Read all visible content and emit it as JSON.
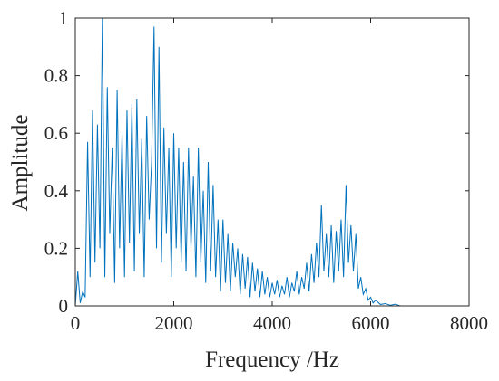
{
  "chart_data": {
    "type": "line",
    "x_label": "Frequency /Hz",
    "y_label": "Amplitude",
    "color": "#0072bd",
    "xlim": [
      0,
      8000
    ],
    "xticks": [
      0,
      2000,
      4000,
      6000,
      8000
    ],
    "ylim": [
      0,
      1
    ],
    "yticks": [
      0,
      0.2,
      0.4,
      0.6,
      0.8,
      1
    ],
    "x": [
      0,
      50,
      100,
      150,
      200,
      250,
      300,
      350,
      400,
      450,
      500,
      550,
      600,
      650,
      700,
      750,
      800,
      850,
      900,
      950,
      1000,
      1050,
      1100,
      1150,
      1200,
      1250,
      1300,
      1350,
      1400,
      1450,
      1500,
      1550,
      1600,
      1650,
      1700,
      1750,
      1800,
      1850,
      1900,
      1950,
      2000,
      2050,
      2100,
      2150,
      2200,
      2250,
      2300,
      2350,
      2400,
      2450,
      2500,
      2550,
      2600,
      2650,
      2700,
      2750,
      2800,
      2850,
      2900,
      2950,
      3000,
      3050,
      3100,
      3150,
      3200,
      3250,
      3300,
      3350,
      3400,
      3450,
      3500,
      3550,
      3600,
      3650,
      3700,
      3750,
      3800,
      3850,
      3900,
      3950,
      4000,
      4050,
      4100,
      4150,
      4200,
      4250,
      4300,
      4350,
      4400,
      4450,
      4500,
      4550,
      4600,
      4650,
      4700,
      4750,
      4800,
      4850,
      4900,
      4950,
      5000,
      5050,
      5100,
      5150,
      5200,
      5250,
      5300,
      5350,
      5400,
      5450,
      5500,
      5550,
      5600,
      5650,
      5700,
      5750,
      5800,
      5850,
      5900,
      5950,
      6000,
      6050,
      6100,
      6200,
      6300,
      6400,
      6500,
      6600,
      8000
    ],
    "values": [
      0,
      0.12,
      0.01,
      0.05,
      0.03,
      0.57,
      0.1,
      0.68,
      0.15,
      0.63,
      0.2,
      1.0,
      0.1,
      0.76,
      0.25,
      0.55,
      0.08,
      0.75,
      0.2,
      0.6,
      0.1,
      0.68,
      0.22,
      0.7,
      0.12,
      0.72,
      0.25,
      0.58,
      0.1,
      0.66,
      0.3,
      0.5,
      0.97,
      0.2,
      0.9,
      0.15,
      0.62,
      0.25,
      0.55,
      0.1,
      0.6,
      0.2,
      0.55,
      0.15,
      0.5,
      0.12,
      0.55,
      0.2,
      0.45,
      0.1,
      0.55,
      0.15,
      0.4,
      0.08,
      0.5,
      0.12,
      0.42,
      0.1,
      0.3,
      0.05,
      0.3,
      0.08,
      0.25,
      0.05,
      0.22,
      0.1,
      0.2,
      0.04,
      0.18,
      0.06,
      0.17,
      0.03,
      0.15,
      0.05,
      0.13,
      0.03,
      0.12,
      0.04,
      0.1,
      0.03,
      0.08,
      0.04,
      0.09,
      0.03,
      0.07,
      0.04,
      0.1,
      0.03,
      0.08,
      0.05,
      0.12,
      0.04,
      0.1,
      0.06,
      0.15,
      0.05,
      0.18,
      0.08,
      0.22,
      0.1,
      0.35,
      0.12,
      0.25,
      0.1,
      0.28,
      0.08,
      0.26,
      0.12,
      0.3,
      0.1,
      0.42,
      0.15,
      0.28,
      0.12,
      0.25,
      0.06,
      0.1,
      0.04,
      0.06,
      0.02,
      0.03,
      0.01,
      0.02,
      0.005,
      0.008,
      0.002,
      0.006,
      0,
      0
    ]
  }
}
